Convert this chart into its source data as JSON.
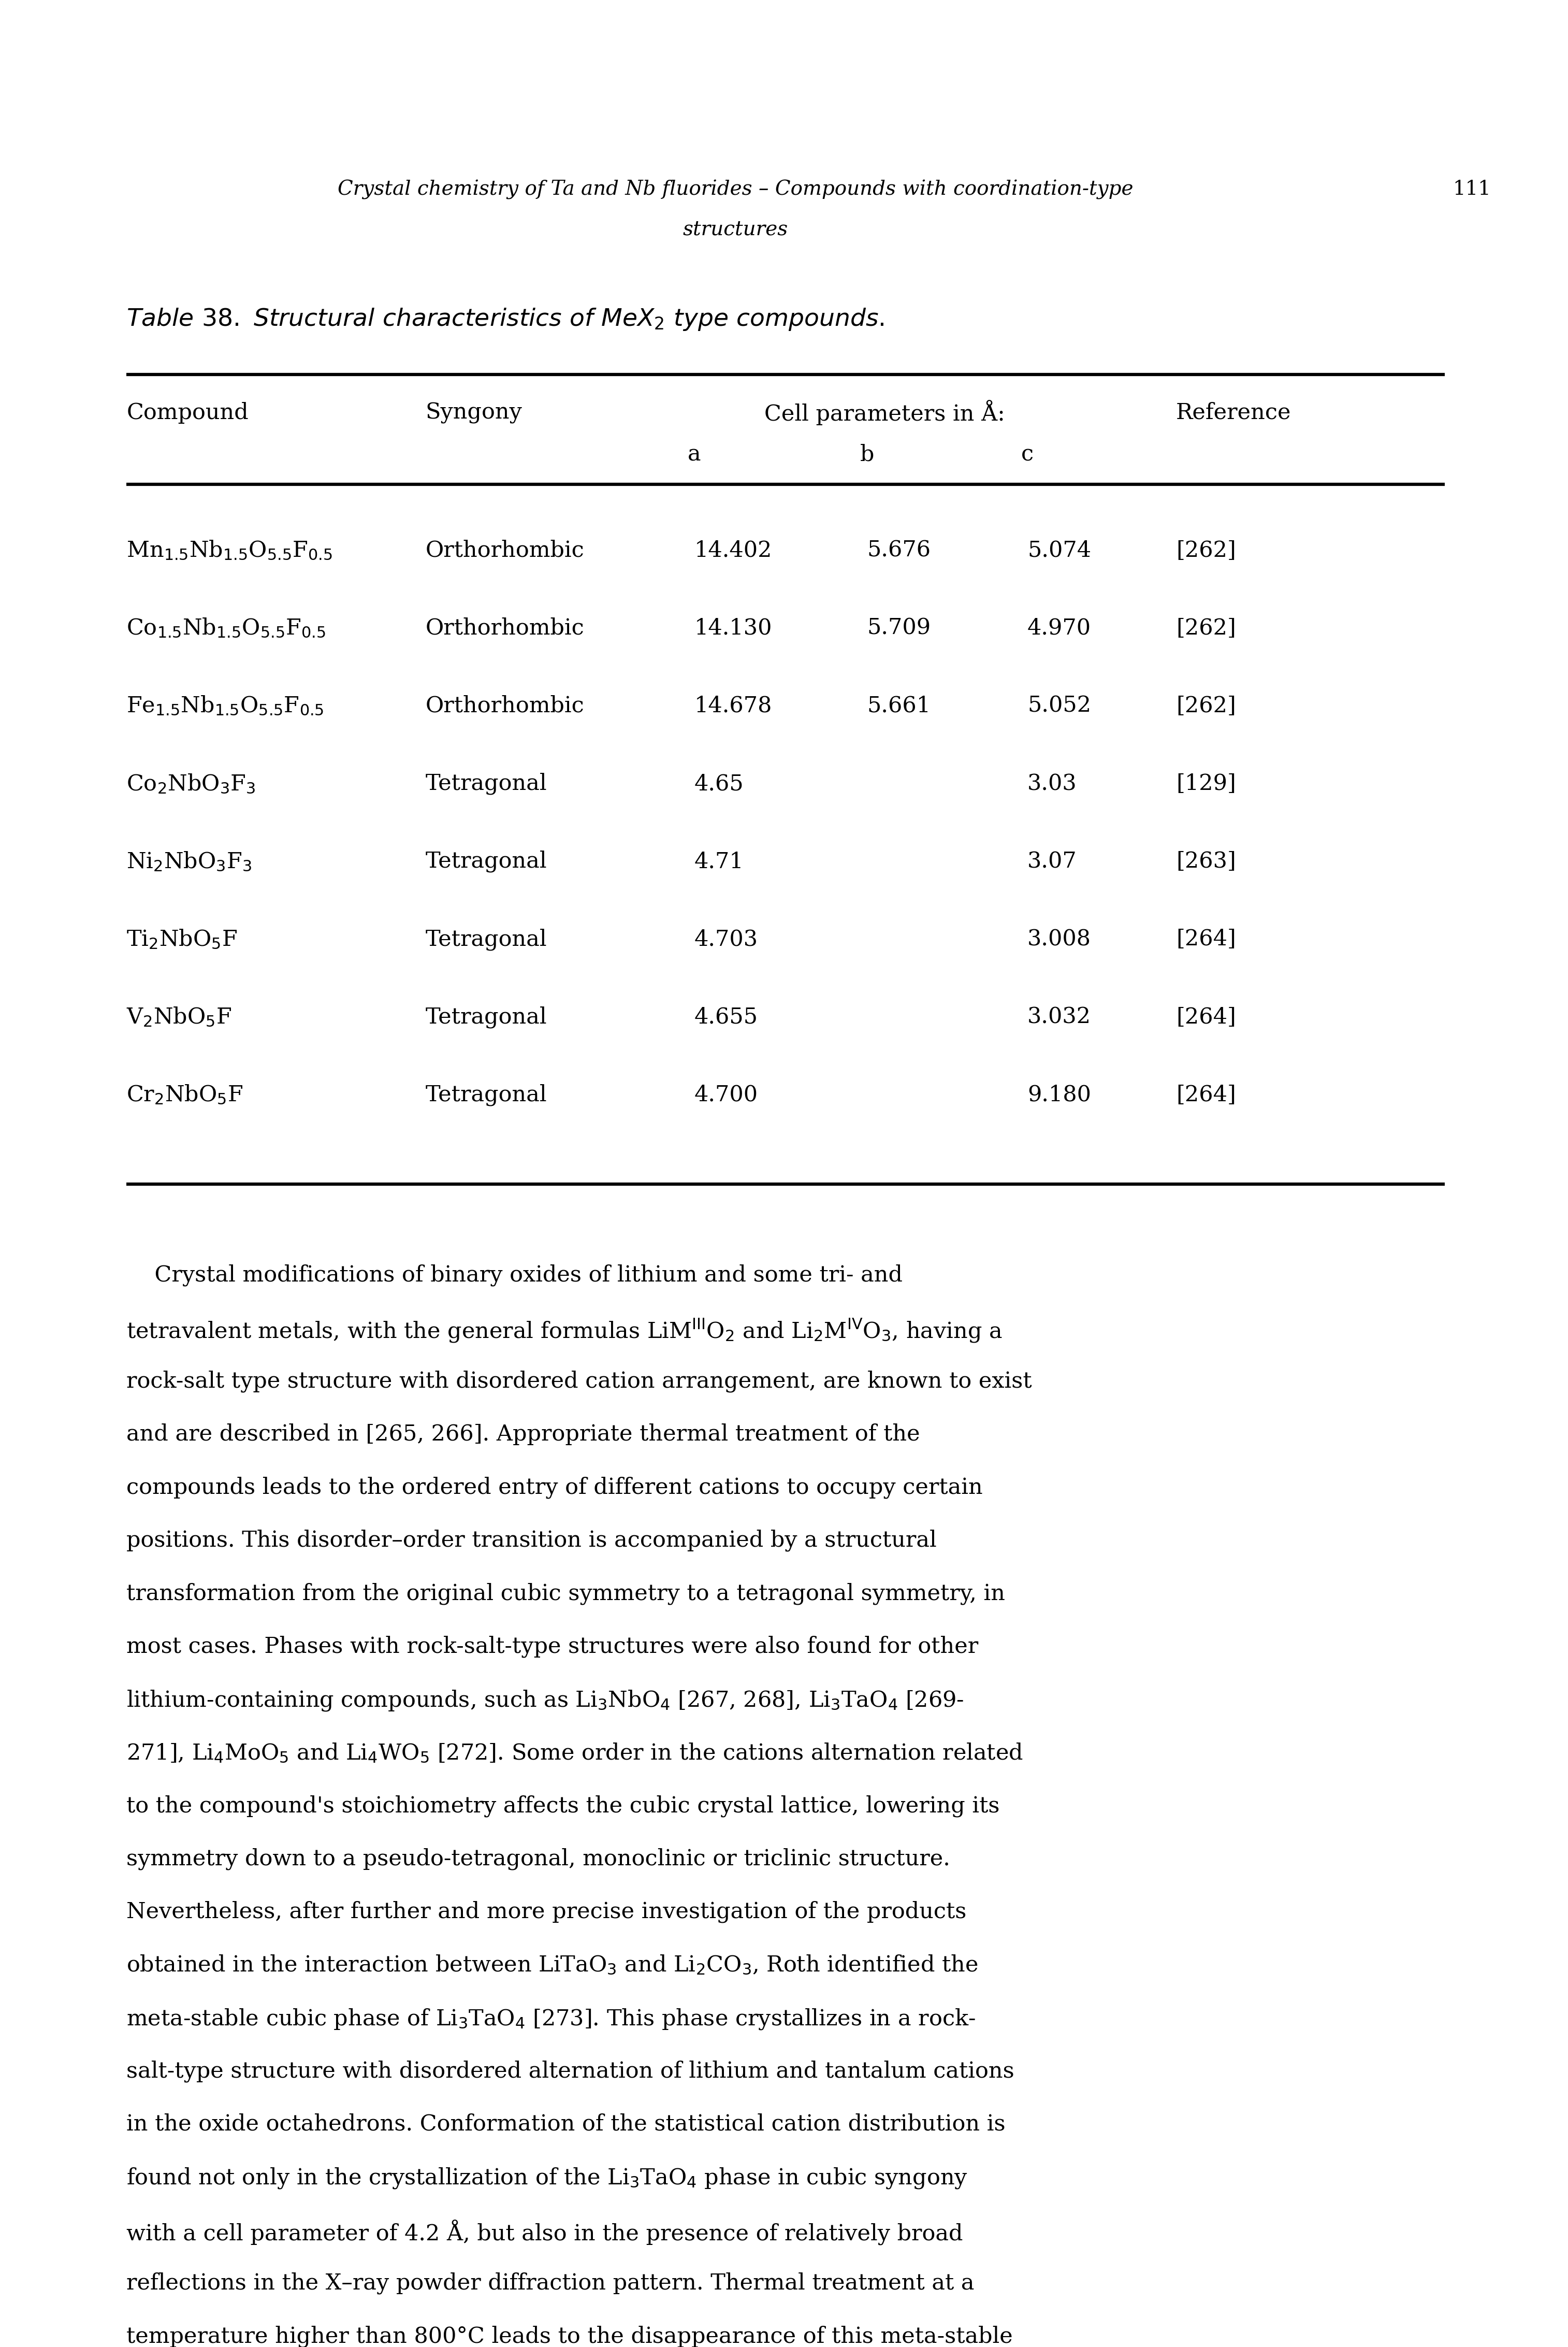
{
  "page_header_line1": "Crystal chemistry of Ta and Nb fluorides – Compounds with coordination-type",
  "page_header_line2": "structures",
  "page_number": "111",
  "table_title_prefix": "Table 38. Structural characteristics of MeX",
  "table_title_suffix": " type compounds.",
  "col_headers_row1": [
    "Compound",
    "Syngony",
    "Cell parameters in Å:",
    "Reference"
  ],
  "col_headers_row2": [
    "a",
    "b",
    "c"
  ],
  "rows": [
    {
      "compound_latex": "Mn$_{1.5}$Nb$_{1.5}$O$_{5.5}$F$_{0.5}$",
      "syngony": "Orthorhombic",
      "a": "14.402",
      "b": "5.676",
      "c": "5.074",
      "ref": "[262]"
    },
    {
      "compound_latex": "Co$_{1.5}$Nb$_{1.5}$O$_{5.5}$F$_{0.5}$",
      "syngony": "Orthorhombic",
      "a": "14.130",
      "b": "5.709",
      "c": "4.970",
      "ref": "[262]"
    },
    {
      "compound_latex": "Fe$_{1.5}$Nb$_{1.5}$O$_{5.5}$F$_{0.5}$",
      "syngony": "Orthorhombic",
      "a": "14.678",
      "b": "5.661",
      "c": "5.052",
      "ref": "[262]"
    },
    {
      "compound_latex": "Co$_{2}$NbO$_{3}$F$_{3}$",
      "syngony": "Tetragonal",
      "a": "4.65",
      "b": "",
      "c": "3.03",
      "ref": "[129]"
    },
    {
      "compound_latex": "Ni$_{2}$NbO$_{3}$F$_{3}$",
      "syngony": "Tetragonal",
      "a": "4.71",
      "b": "",
      "c": "3.07",
      "ref": "[263]"
    },
    {
      "compound_latex": "Ti$_{2}$NbO$_{5}$F",
      "syngony": "Tetragonal",
      "a": "4.703",
      "b": "",
      "c": "3.008",
      "ref": "[264]"
    },
    {
      "compound_latex": "V$_{2}$NbO$_{5}$F",
      "syngony": "Tetragonal",
      "a": "4.655",
      "b": "",
      "c": "3.032",
      "ref": "[264]"
    },
    {
      "compound_latex": "Cr$_{2}$NbO$_{5}$F",
      "syngony": "Tetragonal",
      "a": "4.700",
      "b": "",
      "c": "9.180",
      "ref": "[264]"
    }
  ],
  "body_paragraph_indent": "    ",
  "body_lines": [
    "    Crystal modifications of binary oxides of lithium and some tri- and",
    "tetravalent metals, with the general formulas LiM$^{\\rm III}$O$_2$ and Li$_2$M$^{\\rm IV}$O$_3$, having a",
    "rock-salt type structure with disordered cation arrangement, are known to exist",
    "and are described in [265, 266]. Appropriate thermal treatment of the",
    "compounds leads to the ordered entry of different cations to occupy certain",
    "positions. This disorder–order transition is accompanied by a structural",
    "transformation from the original cubic symmetry to a tetragonal symmetry, in",
    "most cases. Phases with rock-salt-type structures were also found for other",
    "lithium-containing compounds, such as Li$_3$NbO$_4$ [267, 268], Li$_3$TaO$_4$ [269-",
    "271], Li$_4$MoO$_5$ and Li$_4$WO$_5$ [272]. Some order in the cations alternation related",
    "to the compound's stoichiometry affects the cubic crystal lattice, lowering its",
    "symmetry down to a pseudo-tetragonal, monoclinic or triclinic structure.",
    "Nevertheless, after further and more precise investigation of the products",
    "obtained in the interaction between LiTaO$_3$ and Li$_2$CO$_3$, Roth identified the",
    "meta-stable cubic phase of Li$_3$TaO$_4$ [273]. This phase crystallizes in a rock-",
    "salt-type structure with disordered alternation of lithium and tantalum cations",
    "in the oxide octahedrons. Conformation of the statistical cation distribution is",
    "found not only in the crystallization of the Li$_3$TaO$_4$ phase in cubic syngony",
    "with a cell parameter of 4.2 Å, but also in the presence of relatively broad",
    "reflections in the X–ray powder diffraction pattern. Thermal treatment at a",
    "temperature higher than 800°C leads to the disappearance of this meta-stable"
  ],
  "background_color": "#ffffff",
  "text_color": "#000000",
  "line_color": "#000000"
}
